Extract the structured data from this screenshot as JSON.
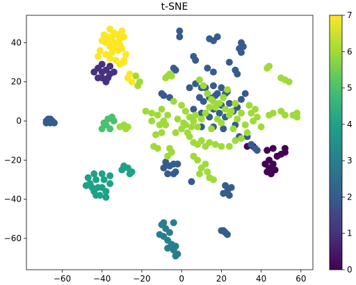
{
  "chart_data": {
    "type": "scatter",
    "title": "t-SNE",
    "xlabel": "",
    "ylabel": "",
    "xlim": [
      -78,
      66
    ],
    "ylim": [
      -76,
      54
    ],
    "xticks": [
      -60,
      -40,
      -20,
      0,
      20,
      40,
      60
    ],
    "yticks": [
      -60,
      -40,
      -20,
      0,
      20,
      40
    ],
    "grid": false,
    "colorbar": {
      "label": "",
      "range": [
        0,
        7
      ],
      "ticks": [
        0,
        1,
        2,
        3,
        4,
        5,
        6,
        7
      ],
      "colormap": "viridis"
    },
    "series": [
      {
        "value": 0,
        "color": "#440154",
        "points": [
          [
            36,
            -13
          ],
          [
            43,
            -15
          ],
          [
            46,
            -14
          ],
          [
            44,
            -20
          ],
          [
            44,
            -24
          ],
          [
            45,
            -27
          ],
          [
            48,
            -18
          ],
          [
            50,
            -17
          ],
          [
            52,
            -14
          ],
          [
            52,
            -16
          ],
          [
            42,
            -22
          ],
          [
            46,
            -22
          ],
          [
            43,
            -26
          ],
          [
            47,
            -25
          ],
          [
            33,
            -13
          ]
        ]
      },
      {
        "value": 1,
        "color": "#46327e",
        "points": [
          [
            -42,
            27
          ],
          [
            -40,
            25
          ],
          [
            -38,
            26
          ],
          [
            -36,
            24
          ],
          [
            -40,
            22
          ],
          [
            -42,
            22
          ],
          [
            -38,
            20
          ],
          [
            -36,
            28
          ],
          [
            -34,
            25
          ],
          [
            -44,
            25
          ],
          [
            -40,
            29
          ],
          [
            -37,
            22
          ]
        ]
      },
      {
        "value": 2,
        "color": "#365c8d",
        "points": [
          [
            -67,
            1
          ],
          [
            -66,
            -1
          ],
          [
            -65,
            0
          ],
          [
            -68,
            0
          ],
          [
            -66,
            1
          ],
          [
            -64,
            -1
          ],
          [
            -68,
            -1
          ],
          [
            -1,
            46
          ],
          [
            -1,
            43
          ],
          [
            14,
            42
          ],
          [
            16,
            41
          ],
          [
            18,
            43
          ],
          [
            30,
            40
          ],
          [
            29,
            37
          ],
          [
            30,
            35
          ],
          [
            31,
            38
          ],
          [
            6,
            33
          ],
          [
            7,
            31
          ],
          [
            -4,
            27
          ],
          [
            -3,
            26
          ],
          [
            13,
            27
          ],
          [
            16,
            25
          ],
          [
            24,
            30
          ],
          [
            27,
            26
          ],
          [
            28,
            24
          ],
          [
            16,
            18
          ],
          [
            18,
            14
          ],
          [
            4,
            17
          ],
          [
            10,
            17
          ],
          [
            7,
            19
          ],
          [
            12,
            17
          ],
          [
            20,
            17
          ],
          [
            23,
            15
          ],
          [
            22,
            14
          ],
          [
            -10,
            14
          ],
          [
            -9,
            13
          ],
          [
            -6,
            12
          ],
          [
            9,
            12
          ],
          [
            11,
            10
          ],
          [
            14,
            12
          ],
          [
            17,
            13
          ],
          [
            20,
            8
          ],
          [
            24,
            9
          ],
          [
            28,
            7
          ],
          [
            30,
            11
          ],
          [
            32,
            14
          ],
          [
            6,
            6
          ],
          [
            10,
            4
          ],
          [
            14,
            2
          ],
          [
            16,
            6
          ],
          [
            19,
            4
          ],
          [
            22,
            2
          ],
          [
            26,
            5
          ],
          [
            10,
            -3
          ],
          [
            16,
            -3
          ],
          [
            21,
            -4
          ],
          [
            27,
            -2
          ],
          [
            29,
            -8
          ],
          [
            33,
            -8
          ],
          [
            35,
            -12
          ],
          [
            37,
            -14
          ],
          [
            38,
            -15
          ],
          [
            -8,
            -21
          ],
          [
            -6,
            -23
          ],
          [
            -4,
            -22
          ],
          [
            -7,
            -27
          ],
          [
            -4,
            -27
          ],
          [
            -2,
            -22
          ],
          [
            -3,
            -26
          ],
          [
            -9,
            -24
          ],
          [
            5,
            -31
          ],
          [
            22,
            -33
          ],
          [
            23,
            -36
          ],
          [
            24,
            -38
          ],
          [
            21,
            -37
          ],
          [
            25,
            -34
          ],
          [
            21,
            -56
          ],
          [
            22,
            -57
          ],
          [
            23,
            -58
          ],
          [
            20,
            -56
          ]
        ]
      },
      {
        "value": 3,
        "color": "#277f8e",
        "points": [
          [
            -10,
            -53
          ],
          [
            -8,
            -55
          ],
          [
            -6,
            -57
          ],
          [
            -9,
            -59
          ],
          [
            -7,
            -61
          ],
          [
            -5,
            -63
          ],
          [
            -4,
            -66
          ],
          [
            -3,
            -69
          ],
          [
            -2,
            -68
          ],
          [
            -4,
            -52
          ],
          [
            -11,
            -58
          ],
          [
            -7,
            -65
          ],
          [
            -9,
            -52
          ],
          [
            -3,
            -64
          ]
        ]
      },
      {
        "value": 4,
        "color": "#1fa187",
        "points": [
          [
            -46,
            -32
          ],
          [
            -43,
            -30
          ],
          [
            -40,
            -34
          ],
          [
            -38,
            -36
          ],
          [
            -44,
            -36
          ],
          [
            -41,
            -38
          ],
          [
            -47,
            -29
          ],
          [
            -42,
            -34
          ],
          [
            -39,
            -30
          ],
          [
            -36,
            -32
          ],
          [
            -45,
            -34
          ],
          [
            -43,
            -38
          ],
          [
            -38,
            -39
          ],
          [
            -48,
            -33
          ],
          [
            -40,
            -27
          ],
          [
            -29,
            -23
          ],
          [
            -27,
            -24
          ],
          [
            -26,
            -27
          ],
          [
            -25,
            -26
          ],
          [
            -30,
            -25
          ],
          [
            -36,
            -28
          ],
          [
            -44,
            -27
          ]
        ]
      },
      {
        "value": 5,
        "color": "#4ac16d",
        "points": [
          [
            -34,
            0
          ],
          [
            -38,
            -2
          ],
          [
            -36,
            -4
          ],
          [
            -39,
            -1
          ],
          [
            -35,
            2
          ],
          [
            -40,
            -4
          ],
          [
            -37,
            1
          ]
        ]
      },
      {
        "value": 6,
        "color": "#a0da39",
        "points": [
          [
            -23,
            23
          ],
          [
            -21,
            20
          ],
          [
            -22,
            18
          ],
          [
            -7,
            23
          ],
          [
            -8,
            22
          ],
          [
            -5,
            23
          ],
          [
            -6,
            24
          ],
          [
            43,
            27
          ],
          [
            44,
            28
          ],
          [
            50,
            22
          ],
          [
            52,
            21
          ],
          [
            54,
            20
          ],
          [
            -29,
            -2
          ],
          [
            -31,
            -3
          ],
          [
            -27,
            -3
          ],
          [
            -28,
            -4
          ],
          [
            -18,
            5
          ],
          [
            -15,
            4
          ],
          [
            -12,
            3
          ],
          [
            -10,
            6
          ],
          [
            -9,
            0
          ],
          [
            -7,
            3
          ],
          [
            -8,
            -2
          ],
          [
            -10,
            -6
          ],
          [
            -13,
            -7
          ],
          [
            -14,
            -13
          ],
          [
            -12,
            -14
          ],
          [
            -5,
            -16
          ],
          [
            -3,
            -6
          ],
          [
            0,
            -4
          ],
          [
            2,
            -2
          ],
          [
            4,
            -8
          ],
          [
            6,
            -11
          ],
          [
            8,
            -12
          ],
          [
            10,
            -10
          ],
          [
            12,
            -13
          ],
          [
            14,
            -11
          ],
          [
            17,
            -12
          ],
          [
            20,
            -13
          ],
          [
            24,
            -13
          ],
          [
            27,
            -10
          ],
          [
            30,
            -9
          ],
          [
            33,
            -6
          ],
          [
            -4,
            10
          ],
          [
            0,
            8
          ],
          [
            2,
            5
          ],
          [
            4,
            2
          ],
          [
            6,
            0
          ],
          [
            8,
            -3
          ],
          [
            10,
            1
          ],
          [
            12,
            4
          ],
          [
            14,
            7
          ],
          [
            16,
            10
          ],
          [
            18,
            1
          ],
          [
            20,
            -1
          ],
          [
            22,
            6
          ],
          [
            24,
            3
          ],
          [
            26,
            -4
          ],
          [
            28,
            1
          ],
          [
            30,
            4
          ],
          [
            34,
            8
          ],
          [
            32,
            -2
          ],
          [
            36,
            0
          ],
          [
            38,
            2
          ],
          [
            40,
            -3
          ],
          [
            44,
            3
          ],
          [
            46,
            4
          ],
          [
            50,
            5
          ],
          [
            52,
            3
          ],
          [
            56,
            3
          ],
          [
            58,
            2
          ],
          [
            58,
            4
          ],
          [
            9,
            21
          ],
          [
            11,
            18
          ],
          [
            13,
            14
          ],
          [
            15,
            11
          ],
          [
            17,
            7
          ],
          [
            19,
            9
          ],
          [
            21,
            12
          ],
          [
            23,
            16
          ],
          [
            25,
            5
          ],
          [
            27,
            9
          ],
          [
            6,
            -18
          ],
          [
            8,
            -20
          ],
          [
            12,
            -22
          ],
          [
            10,
            -24
          ],
          [
            9,
            -27
          ],
          [
            13,
            -26
          ],
          [
            16,
            -30
          ],
          [
            14,
            -29
          ],
          [
            -6,
            -14
          ],
          [
            -7,
            -18
          ],
          [
            35,
            4
          ],
          [
            37,
            6
          ],
          [
            15,
            -4
          ],
          [
            3,
            -6
          ],
          [
            5,
            -3
          ],
          [
            -2,
            1
          ],
          [
            1,
            -1
          ],
          [
            7,
            3
          ],
          [
            -15,
            0
          ],
          [
            -11,
            -2
          ]
        ]
      },
      {
        "value": 7,
        "color": "#fde725",
        "points": [
          [
            -36,
            47
          ],
          [
            -34,
            45
          ],
          [
            -32,
            44
          ],
          [
            -30,
            46
          ],
          [
            -29,
            43
          ],
          [
            -35,
            41
          ],
          [
            -33,
            40
          ],
          [
            -31,
            39
          ],
          [
            -37,
            43
          ],
          [
            -39,
            44
          ],
          [
            -38,
            40
          ],
          [
            -36,
            38
          ],
          [
            -34,
            37
          ],
          [
            -32,
            36
          ],
          [
            -30,
            37
          ],
          [
            -28,
            34
          ],
          [
            -29,
            31
          ],
          [
            -31,
            29
          ],
          [
            -33,
            31
          ],
          [
            -35,
            35
          ],
          [
            -40,
            41
          ],
          [
            -41,
            36
          ],
          [
            -42,
            33
          ],
          [
            -38,
            34
          ],
          [
            -36,
            32
          ],
          [
            -34,
            44
          ],
          [
            -31,
            42
          ],
          [
            -27,
            22
          ],
          [
            -25,
            20
          ],
          [
            -26,
            24
          ],
          [
            -29,
            30
          ]
        ]
      }
    ]
  }
}
